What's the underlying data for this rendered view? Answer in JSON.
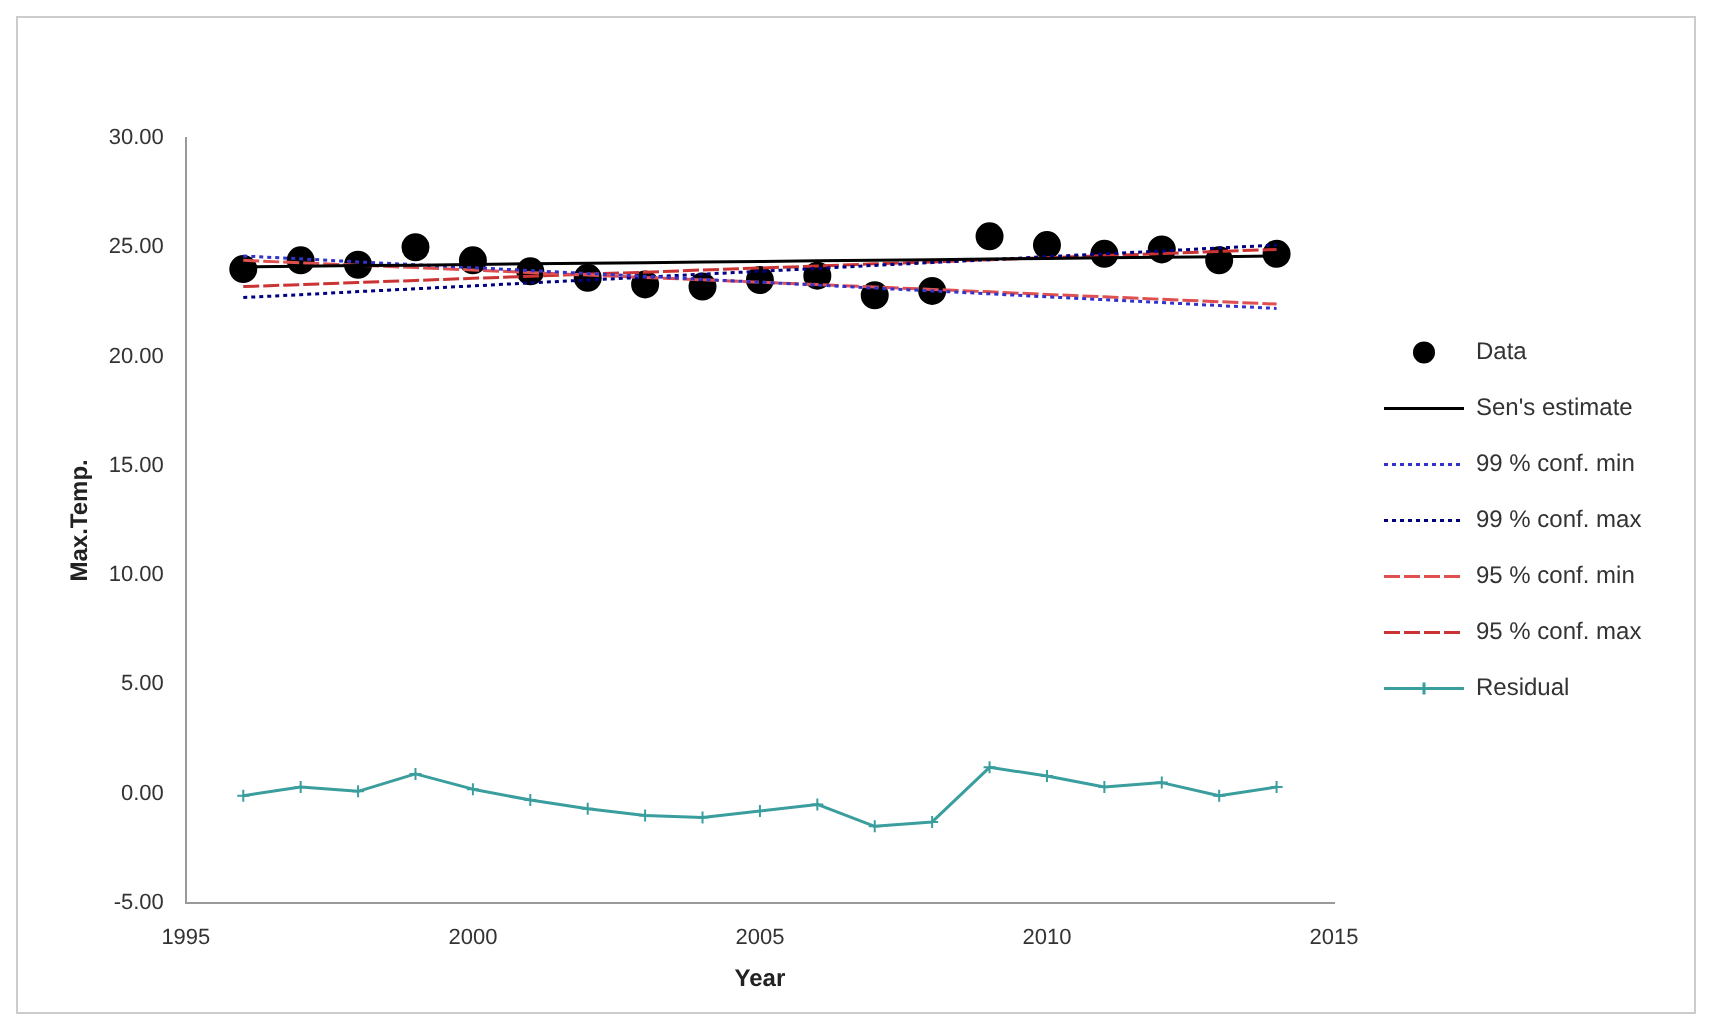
{
  "chart_data": {
    "type": "scatter",
    "xlabel": "Year",
    "ylabel": "Max.Temp.",
    "xlim": [
      1995,
      2015
    ],
    "xticks": [
      1995,
      2000,
      2005,
      2010,
      2015
    ],
    "ylim": [
      -5,
      30
    ],
    "yticks": [
      {
        "value": -5,
        "label": "-5.00"
      },
      {
        "value": 0,
        "label": "0.00"
      },
      {
        "value": 5,
        "label": "5.00"
      },
      {
        "value": 10,
        "label": "10.00"
      },
      {
        "value": 15,
        "label": "15.00"
      },
      {
        "value": 20,
        "label": "20.00"
      },
      {
        "value": 25,
        "label": "25.00"
      },
      {
        "value": 30,
        "label": "30.00"
      }
    ],
    "grid": false,
    "legend": "right",
    "x": [
      1996,
      1997,
      1998,
      1999,
      2000,
      2001,
      2002,
      2003,
      2004,
      2005,
      2006,
      2007,
      2008,
      2009,
      2010,
      2011,
      2012,
      2013,
      2014
    ],
    "series": [
      {
        "name": "Data",
        "type": "scatter",
        "marker": "circle",
        "color": "#000000",
        "values": [
          24.0,
          24.4,
          24.2,
          25.0,
          24.4,
          23.9,
          23.6,
          23.3,
          23.2,
          23.5,
          23.7,
          22.8,
          23.0,
          25.5,
          25.1,
          24.7,
          24.9,
          24.4,
          24.7
        ]
      },
      {
        "name": "Sen's estimate",
        "type": "line",
        "marker": "none",
        "line_style": "solid",
        "color": "#000000",
        "values": [
          24.1,
          24.13,
          24.16,
          24.18,
          24.21,
          24.24,
          24.27,
          24.29,
          24.32,
          24.35,
          24.38,
          24.41,
          24.43,
          24.46,
          24.49,
          24.52,
          24.54,
          24.57,
          24.6
        ]
      },
      {
        "name": "99 % conf. min",
        "type": "line",
        "marker": "none",
        "line_style": "dotted",
        "color": "#3333cc",
        "values": [
          24.6,
          24.47,
          24.33,
          24.2,
          24.07,
          23.93,
          23.8,
          23.67,
          23.53,
          23.4,
          23.27,
          23.13,
          23.0,
          22.87,
          22.73,
          22.6,
          22.47,
          22.33,
          22.2
        ]
      },
      {
        "name": "99 % conf. max",
        "type": "line",
        "marker": "none",
        "line_style": "dotted",
        "color": "#000080",
        "values": [
          22.7,
          22.83,
          22.97,
          23.1,
          23.23,
          23.37,
          23.5,
          23.63,
          23.77,
          23.9,
          24.03,
          24.17,
          24.3,
          24.43,
          24.57,
          24.7,
          24.83,
          24.97,
          25.1
        ]
      },
      {
        "name": "95 % conf. min",
        "type": "line",
        "marker": "none",
        "line_style": "dashed",
        "color": "#e05050",
        "values": [
          24.4,
          24.29,
          24.18,
          24.07,
          23.96,
          23.84,
          23.73,
          23.62,
          23.51,
          23.4,
          23.29,
          23.18,
          23.07,
          22.96,
          22.84,
          22.73,
          22.62,
          22.51,
          22.4
        ]
      },
      {
        "name": "95 % conf. max",
        "type": "line",
        "marker": "none",
        "line_style": "dashed",
        "color": "#cc3333",
        "values": [
          23.2,
          23.29,
          23.39,
          23.48,
          23.58,
          23.67,
          23.77,
          23.86,
          23.96,
          24.05,
          24.14,
          24.24,
          24.33,
          24.43,
          24.52,
          24.62,
          24.71,
          24.81,
          24.9
        ]
      },
      {
        "name": "Residual",
        "type": "line",
        "marker": "cross",
        "line_style": "solid",
        "color": "#3a9e9e",
        "values": [
          -0.1,
          0.3,
          0.1,
          0.9,
          0.2,
          -0.3,
          -0.7,
          -1.0,
          -1.1,
          -0.8,
          -0.5,
          -1.5,
          -1.3,
          1.2,
          0.8,
          0.3,
          0.5,
          -0.1,
          0.3
        ]
      }
    ]
  }
}
